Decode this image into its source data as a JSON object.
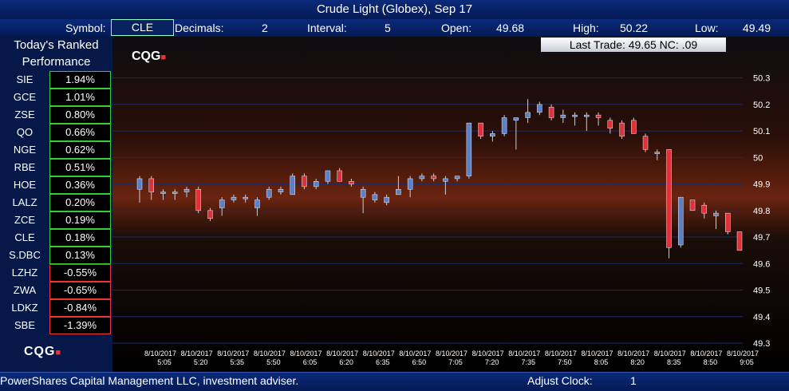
{
  "title": "Crude Light (Globex), Sep 17",
  "info": {
    "symbol_label": "Symbol:",
    "symbol_value": "CLE",
    "decimals_label": "Decimals:",
    "decimals_value": "2",
    "interval_label": "Interval:",
    "interval_value": "5",
    "open_label": "Open:",
    "open_value": "49.68",
    "high_label": "High:",
    "high_value": "50.22",
    "low_label": "Low:",
    "low_value": "49.49"
  },
  "sidebar": {
    "title_line1": "Today's Ranked",
    "title_line2": "Performance",
    "rows": [
      {
        "sym": "SIE",
        "pct": "1.94%",
        "dir": "pos"
      },
      {
        "sym": "GCE",
        "pct": "1.01%",
        "dir": "pos"
      },
      {
        "sym": "ZSE",
        "pct": "0.80%",
        "dir": "pos"
      },
      {
        "sym": "QO",
        "pct": "0.66%",
        "dir": "pos"
      },
      {
        "sym": "NGE",
        "pct": "0.62%",
        "dir": "pos"
      },
      {
        "sym": "RBE",
        "pct": "0.51%",
        "dir": "pos"
      },
      {
        "sym": "HOE",
        "pct": "0.36%",
        "dir": "pos"
      },
      {
        "sym": "LALZ",
        "pct": "0.20%",
        "dir": "pos"
      },
      {
        "sym": "ZCE",
        "pct": "0.19%",
        "dir": "pos"
      },
      {
        "sym": "CLE",
        "pct": "0.18%",
        "dir": "pos"
      },
      {
        "sym": "S.DBC",
        "pct": "0.13%",
        "dir": "pos"
      },
      {
        "sym": "LZHZ",
        "pct": "-0.55%",
        "dir": "neg"
      },
      {
        "sym": "ZWA",
        "pct": "-0.65%",
        "dir": "neg"
      },
      {
        "sym": "LDKZ",
        "pct": "-0.84%",
        "dir": "neg"
      },
      {
        "sym": "SBE",
        "pct": "-1.39%",
        "dir": "neg"
      }
    ],
    "logo": "CQG"
  },
  "chart": {
    "logo": "CQG",
    "last_trade": "Last Trade: 49.65  NC: .09",
    "colors": {
      "up": "#5a80c8",
      "down": "#e0303a"
    }
  },
  "bottom": {
    "disclaimer": "PowerShares Capital Management LLC, investment adviser.",
    "adjust_label": "Adjust Clock:",
    "adjust_value": "1"
  },
  "chart_data": {
    "type": "candlestick",
    "title": "Crude Light (Globex), Sep 17",
    "ylim": [
      49.3,
      50.35
    ],
    "yticks": [
      "50.3",
      "50.2",
      "50.1",
      "50",
      "49.9",
      "49.8",
      "49.7",
      "49.6",
      "49.5",
      "49.4",
      "49.3"
    ],
    "xticks": [
      {
        "date": "8/10/2017",
        "time": "5:05"
      },
      {
        "date": "8/10/2017",
        "time": "5:20"
      },
      {
        "date": "8/10/2017",
        "time": "5:35"
      },
      {
        "date": "8/10/2017",
        "time": "5:50"
      },
      {
        "date": "8/10/2017",
        "time": "6:05"
      },
      {
        "date": "8/10/2017",
        "time": "6:20"
      },
      {
        "date": "8/10/2017",
        "time": "6:35"
      },
      {
        "date": "8/10/2017",
        "time": "6:50"
      },
      {
        "date": "8/10/2017",
        "time": "7:05"
      },
      {
        "date": "8/10/2017",
        "time": "7:20"
      },
      {
        "date": "8/10/2017",
        "time": "7:35"
      },
      {
        "date": "8/10/2017",
        "time": "7:50"
      },
      {
        "date": "8/10/2017",
        "time": "8:05"
      },
      {
        "date": "8/10/2017",
        "time": "8:20"
      },
      {
        "date": "8/10/2017",
        "time": "8:35"
      },
      {
        "date": "8/10/2017",
        "time": "8:50"
      },
      {
        "date": "8/10/2017",
        "time": "9:05"
      }
    ],
    "candles": [
      {
        "o": 49.88,
        "h": 49.93,
        "l": 49.83,
        "c": 49.92
      },
      {
        "o": 49.92,
        "h": 49.93,
        "l": 49.84,
        "c": 49.87
      },
      {
        "o": 49.87,
        "h": 49.88,
        "l": 49.84,
        "c": 49.87
      },
      {
        "o": 49.87,
        "h": 49.88,
        "l": 49.84,
        "c": 49.87
      },
      {
        "o": 49.87,
        "h": 49.89,
        "l": 49.85,
        "c": 49.88
      },
      {
        "o": 49.88,
        "h": 49.89,
        "l": 49.79,
        "c": 49.8
      },
      {
        "o": 49.8,
        "h": 49.81,
        "l": 49.76,
        "c": 49.77
      },
      {
        "o": 49.81,
        "h": 49.85,
        "l": 49.78,
        "c": 49.84
      },
      {
        "o": 49.84,
        "h": 49.86,
        "l": 49.83,
        "c": 49.85
      },
      {
        "o": 49.85,
        "h": 49.86,
        "l": 49.83,
        "c": 49.85
      },
      {
        "o": 49.81,
        "h": 49.85,
        "l": 49.78,
        "c": 49.84
      },
      {
        "o": 49.85,
        "h": 49.89,
        "l": 49.84,
        "c": 49.88
      },
      {
        "o": 49.87,
        "h": 49.89,
        "l": 49.86,
        "c": 49.88
      },
      {
        "o": 49.86,
        "h": 49.94,
        "l": 49.86,
        "c": 49.93
      },
      {
        "o": 49.93,
        "h": 49.94,
        "l": 49.88,
        "c": 49.89
      },
      {
        "o": 49.89,
        "h": 49.92,
        "l": 49.88,
        "c": 49.91
      },
      {
        "o": 49.91,
        "h": 49.95,
        "l": 49.9,
        "c": 49.95
      },
      {
        "o": 49.95,
        "h": 49.96,
        "l": 49.91,
        "c": 49.91
      },
      {
        "o": 49.91,
        "h": 49.92,
        "l": 49.89,
        "c": 49.9
      },
      {
        "o": 49.85,
        "h": 49.89,
        "l": 49.79,
        "c": 49.88
      },
      {
        "o": 49.84,
        "h": 49.87,
        "l": 49.83,
        "c": 49.86
      },
      {
        "o": 49.83,
        "h": 49.86,
        "l": 49.82,
        "c": 49.85
      },
      {
        "o": 49.86,
        "h": 49.93,
        "l": 49.86,
        "c": 49.88
      },
      {
        "o": 49.88,
        "h": 49.93,
        "l": 49.85,
        "c": 49.92
      },
      {
        "o": 49.92,
        "h": 49.94,
        "l": 49.91,
        "c": 49.93
      },
      {
        "o": 49.93,
        "h": 49.94,
        "l": 49.91,
        "c": 49.92
      },
      {
        "o": 49.91,
        "h": 49.93,
        "l": 49.86,
        "c": 49.92
      },
      {
        "o": 49.92,
        "h": 49.93,
        "l": 49.91,
        "c": 49.93
      },
      {
        "o": 49.93,
        "h": 50.13,
        "l": 49.92,
        "c": 50.13
      },
      {
        "o": 50.13,
        "h": 50.13,
        "l": 50.07,
        "c": 50.08
      },
      {
        "o": 50.08,
        "h": 50.1,
        "l": 50.06,
        "c": 50.09
      },
      {
        "o": 50.09,
        "h": 50.16,
        "l": 50.08,
        "c": 50.15
      },
      {
        "o": 50.14,
        "h": 50.15,
        "l": 50.03,
        "c": 50.15
      },
      {
        "o": 50.15,
        "h": 50.22,
        "l": 50.13,
        "c": 50.17
      },
      {
        "o": 50.17,
        "h": 50.21,
        "l": 50.16,
        "c": 50.2
      },
      {
        "o": 50.19,
        "h": 50.2,
        "l": 50.14,
        "c": 50.15
      },
      {
        "o": 50.15,
        "h": 50.18,
        "l": 50.13,
        "c": 50.16
      },
      {
        "o": 50.16,
        "h": 50.17,
        "l": 50.12,
        "c": 50.16
      },
      {
        "o": 50.16,
        "h": 50.17,
        "l": 50.1,
        "c": 50.16
      },
      {
        "o": 50.16,
        "h": 50.17,
        "l": 50.12,
        "c": 50.15
      },
      {
        "o": 50.14,
        "h": 50.15,
        "l": 50.09,
        "c": 50.11
      },
      {
        "o": 50.13,
        "h": 50.14,
        "l": 50.07,
        "c": 50.08
      },
      {
        "o": 50.14,
        "h": 50.15,
        "l": 50.09,
        "c": 50.09
      },
      {
        "o": 50.08,
        "h": 50.09,
        "l": 50.02,
        "c": 50.03
      },
      {
        "o": 50.02,
        "h": 50.03,
        "l": 49.99,
        "c": 50.02
      },
      {
        "o": 50.03,
        "h": 50.03,
        "l": 49.62,
        "c": 49.66
      },
      {
        "o": 49.67,
        "h": 49.85,
        "l": 49.66,
        "c": 49.85
      },
      {
        "o": 49.84,
        "h": 49.84,
        "l": 49.8,
        "c": 49.8
      },
      {
        "o": 49.82,
        "h": 49.83,
        "l": 49.77,
        "c": 49.79
      },
      {
        "o": 49.78,
        "h": 49.8,
        "l": 49.73,
        "c": 49.79
      },
      {
        "o": 49.79,
        "h": 49.79,
        "l": 49.71,
        "c": 49.72
      },
      {
        "o": 49.72,
        "h": 49.72,
        "l": 49.65,
        "c": 49.65
      }
    ]
  }
}
